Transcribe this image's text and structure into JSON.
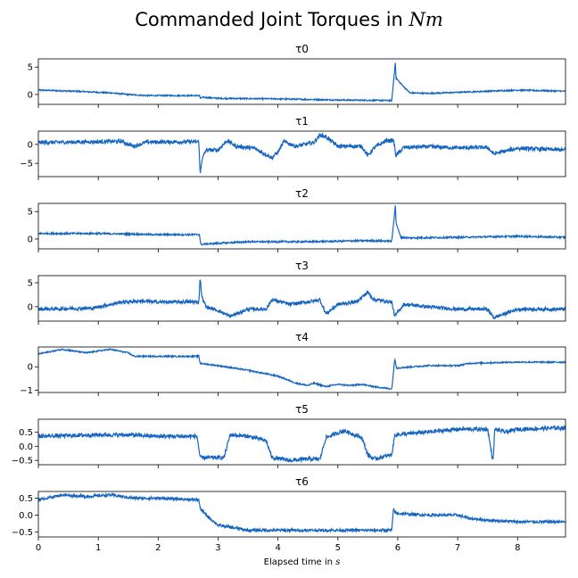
{
  "title_text": "Commanded Joint Torques in ",
  "title_unit": "Nm",
  "xlabel_text": "Elapsed time in ",
  "xlabel_unit": "s",
  "line_color": "#1565c0",
  "chart_data": {
    "type": "line",
    "title": "Commanded Joint Torques in Nm",
    "xlabel": "Elapsed time in s",
    "xlim": [
      0,
      8.8
    ],
    "x_ticks": [
      0,
      1,
      2,
      3,
      4,
      5,
      6,
      7,
      8
    ],
    "grid": false,
    "sharex": true,
    "subplots": [
      {
        "name": "τ0",
        "ylim": [
          -1.8,
          6.5
        ],
        "y_ticks": [
          {
            "v": 5,
            "label": "5"
          },
          {
            "v": 0,
            "label": "0"
          }
        ],
        "x": [
          0,
          0.6,
          1.2,
          1.5,
          1.8,
          2.69,
          2.71,
          2.73,
          3.0,
          4.0,
          5.0,
          5.9,
          5.96,
          5.97,
          6.05,
          6.2,
          6.5,
          7.0,
          7.5,
          8.0,
          8.8
        ],
        "y": [
          0.8,
          0.6,
          0.3,
          0.0,
          -0.2,
          -0.2,
          -0.8,
          -0.5,
          -0.7,
          -0.8,
          -1.0,
          -1.1,
          6.0,
          3.0,
          2.0,
          0.3,
          0.2,
          0.4,
          0.6,
          0.8,
          0.6
        ],
        "noise": 0.12
      },
      {
        "name": "τ1",
        "ylim": [
          -8.5,
          3.5
        ],
        "y_ticks": [
          {
            "v": 0,
            "label": "0"
          },
          {
            "v": -5,
            "label": "−5"
          }
        ],
        "x": [
          0,
          1.4,
          1.5,
          1.6,
          1.8,
          2.68,
          2.7,
          2.73,
          2.8,
          3.0,
          3.15,
          3.3,
          3.6,
          3.9,
          4.0,
          4.1,
          4.3,
          4.6,
          4.7,
          4.8,
          5.0,
          5.4,
          5.5,
          5.6,
          5.8,
          5.93,
          5.97,
          6.1,
          6.5,
          7.0,
          7.5,
          7.6,
          8.0,
          8.8
        ],
        "y": [
          0.5,
          0.8,
          0.0,
          -0.5,
          0.6,
          0.7,
          -8.0,
          -4.0,
          -1.5,
          -1.5,
          1.0,
          -0.5,
          -1.0,
          -3.5,
          -2.0,
          0.8,
          -0.5,
          0.5,
          2.5,
          2.0,
          -0.5,
          -0.5,
          -3.0,
          -1.0,
          1.0,
          1.0,
          -3.0,
          -0.8,
          -0.6,
          -0.9,
          -0.8,
          -2.5,
          -1.0,
          -1.5
        ],
        "noise": 0.5
      },
      {
        "name": "τ2",
        "ylim": [
          -1.8,
          6.5
        ],
        "y_ticks": [
          {
            "v": 5,
            "label": "5"
          },
          {
            "v": 0,
            "label": "0"
          }
        ],
        "x": [
          0,
          1.0,
          2.0,
          2.69,
          2.71,
          2.8,
          3.5,
          4.5,
          5.5,
          5.9,
          5.96,
          5.97,
          6.05,
          6.2,
          7.0,
          8.0,
          8.8
        ],
        "y": [
          1.0,
          1.0,
          0.8,
          0.8,
          -1.0,
          -0.9,
          -0.5,
          -0.5,
          -0.3,
          -0.4,
          6.3,
          3.0,
          0.3,
          0.2,
          0.3,
          0.5,
          0.3
        ],
        "noise": 0.15
      },
      {
        "name": "τ3",
        "ylim": [
          -3.0,
          6.5
        ],
        "y_ticks": [
          {
            "v": 5,
            "label": "5"
          },
          {
            "v": 0,
            "label": "0"
          }
        ],
        "x": [
          0,
          0.9,
          1.4,
          1.7,
          2.0,
          2.68,
          2.7,
          2.73,
          2.8,
          3.0,
          3.2,
          3.5,
          3.8,
          3.9,
          4.2,
          4.6,
          4.7,
          4.8,
          5.0,
          5.3,
          5.5,
          5.6,
          5.9,
          5.95,
          6.1,
          6.5,
          7.0,
          7.5,
          7.6,
          8.0,
          8.8
        ],
        "y": [
          -0.5,
          -0.3,
          1.0,
          1.2,
          1.0,
          1.0,
          6.2,
          2.0,
          0.0,
          -0.8,
          -2.0,
          -0.5,
          -0.5,
          1.5,
          0.5,
          1.2,
          1.5,
          -1.5,
          0.5,
          1.0,
          3.0,
          1.5,
          1.0,
          -2.0,
          0.5,
          0.0,
          -0.5,
          -0.5,
          -2.3,
          -0.5,
          -0.5
        ],
        "noise": 0.35
      },
      {
        "name": "τ4",
        "ylim": [
          -1.1,
          0.85
        ],
        "y_ticks": [
          {
            "v": 0,
            "label": "0"
          },
          {
            "v": -1,
            "label": "−1"
          }
        ],
        "x": [
          0,
          0.4,
          0.8,
          1.2,
          1.5,
          1.6,
          2.68,
          2.7,
          3.0,
          3.5,
          4.0,
          4.3,
          4.5,
          4.6,
          4.8,
          5.0,
          5.2,
          5.4,
          5.6,
          5.9,
          5.95,
          5.98,
          6.5,
          7.0,
          7.2,
          8.0,
          8.8
        ],
        "y": [
          0.55,
          0.75,
          0.6,
          0.75,
          0.6,
          0.45,
          0.45,
          0.15,
          0.05,
          -0.15,
          -0.4,
          -0.7,
          -0.8,
          -0.7,
          -0.85,
          -0.75,
          -0.8,
          -0.75,
          -0.85,
          -0.95,
          0.35,
          -0.05,
          0.05,
          0.05,
          0.15,
          0.2,
          0.2
        ],
        "noise": 0.03
      },
      {
        "name": "τ5",
        "ylim": [
          -0.65,
          0.95
        ],
        "y_ticks": [
          {
            "v": 0.5,
            "label": "0.5"
          },
          {
            "v": 0.0,
            "label": "0.0"
          },
          {
            "v": -0.5,
            "label": "−0.5"
          }
        ],
        "x": [
          0,
          1.0,
          1.5,
          2.0,
          2.65,
          2.68,
          2.7,
          3.1,
          3.2,
          3.5,
          3.8,
          3.9,
          4.2,
          4.5,
          4.7,
          4.8,
          5.1,
          5.4,
          5.5,
          5.6,
          5.9,
          5.95,
          6.5,
          7.0,
          7.5,
          7.59,
          7.62,
          7.8,
          8.0,
          8.8
        ],
        "y": [
          0.35,
          0.4,
          0.4,
          0.35,
          0.35,
          -0.1,
          -0.4,
          -0.4,
          0.4,
          0.35,
          0.2,
          -0.4,
          -0.5,
          -0.45,
          -0.45,
          0.3,
          0.55,
          0.3,
          -0.3,
          -0.45,
          -0.3,
          0.4,
          0.5,
          0.6,
          0.6,
          -0.55,
          0.6,
          0.5,
          0.6,
          0.65
        ],
        "noise": 0.07
      },
      {
        "name": "τ6",
        "ylim": [
          -0.65,
          0.7
        ],
        "y_ticks": [
          {
            "v": 0.5,
            "label": "0.5"
          },
          {
            "v": 0.0,
            "label": "0.0"
          },
          {
            "v": -0.5,
            "label": "−0.5"
          }
        ],
        "x": [
          0,
          0.4,
          0.8,
          1.2,
          1.6,
          2.0,
          2.68,
          2.7,
          2.8,
          3.0,
          3.5,
          4.0,
          4.5,
          5.0,
          5.5,
          5.9,
          5.93,
          5.96,
          6.5,
          7.0,
          7.2,
          7.5,
          8.0,
          8.8
        ],
        "y": [
          0.45,
          0.6,
          0.55,
          0.6,
          0.5,
          0.5,
          0.45,
          0.2,
          0.0,
          -0.3,
          -0.45,
          -0.45,
          -0.45,
          -0.45,
          -0.45,
          -0.45,
          0.2,
          0.05,
          0.0,
          0.0,
          -0.1,
          -0.15,
          -0.2,
          -0.2
        ],
        "noise": 0.04
      }
    ]
  }
}
